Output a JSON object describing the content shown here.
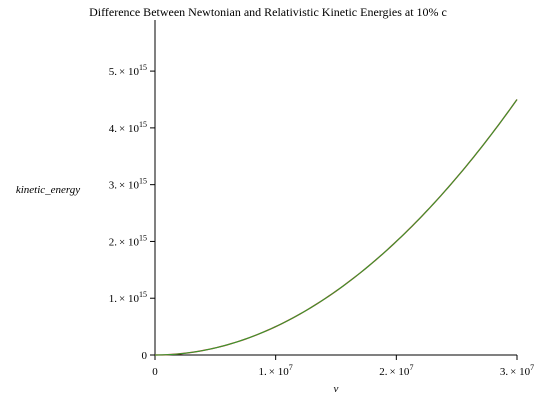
{
  "chart_data": {
    "type": "line",
    "title": "Difference Between Newtonian and Relativistic Kinetic Energies at 10% c",
    "xlabel": "v",
    "ylabel": "kinetic_energy",
    "xlim": [
      0,
      30000000
    ],
    "ylim": [
      0,
      5900000000000000
    ],
    "grid": false,
    "legend": "none",
    "x_ticks": [
      {
        "value": 0,
        "label": "0"
      },
      {
        "value": 10000000,
        "mantissa": "1.",
        "base": "× 10",
        "exp": "7"
      },
      {
        "value": 20000000,
        "mantissa": "2.",
        "base": "× 10",
        "exp": "7"
      },
      {
        "value": 30000000,
        "mantissa": "3.",
        "base": "× 10",
        "exp": "7"
      }
    ],
    "y_ticks": [
      {
        "value": 0,
        "label": "0"
      },
      {
        "value": 1000000000000000,
        "mantissa": "1.",
        "base": "× 10",
        "exp": "15"
      },
      {
        "value": 2000000000000000,
        "mantissa": "2.",
        "base": "× 10",
        "exp": "15"
      },
      {
        "value": 3000000000000000,
        "mantissa": "3.",
        "base": "× 10",
        "exp": "15"
      },
      {
        "value": 4000000000000000,
        "mantissa": "4.",
        "base": "× 10",
        "exp": "15"
      },
      {
        "value": 5000000000000000,
        "mantissa": "5.",
        "base": "× 10",
        "exp": "15"
      }
    ],
    "series": [
      {
        "color": "#c0392b",
        "x": [
          0,
          3000000,
          6000000,
          9000000,
          12000000,
          15000000,
          18000000,
          21000000,
          24000000,
          27000000,
          30000000
        ],
        "y": [
          0,
          45000000000000,
          180000000000000,
          405000000000000,
          720000000000000,
          1125000000000000,
          1620000000000000,
          2205000000000000,
          2880000000000000,
          3645000000000000,
          4500000000000000
        ]
      },
      {
        "color": "#2ea02e",
        "x": [
          0,
          3000000,
          6000000,
          9000000,
          12000000,
          15000000,
          18000000,
          21000000,
          24000000,
          27000000,
          30000000
        ],
        "y": [
          0,
          45000000000000,
          180000000000000,
          405000000000000,
          720000000000000,
          1125000000000000,
          1620000000000000,
          2205000000000000,
          2880000000000000,
          3645000000000000,
          4500000000000000
        ]
      }
    ]
  }
}
